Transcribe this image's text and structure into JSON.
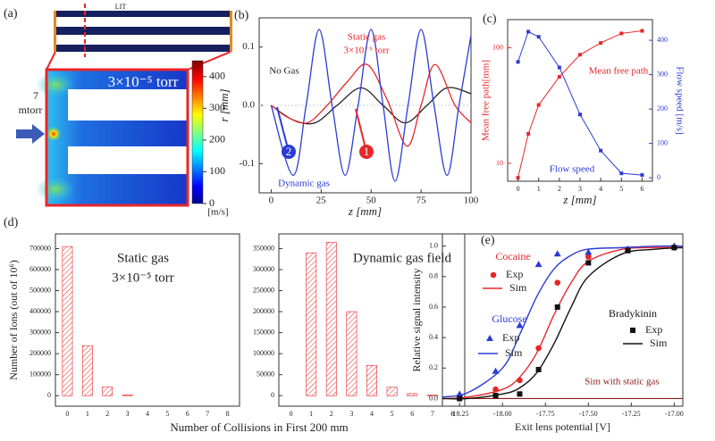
{
  "chart_data": [
    {
      "type": "heatmap",
      "panel": "(a)",
      "title": "LIT",
      "inlet_label": [
        "7",
        "mtorr"
      ],
      "annotation": "3×10⁻⁵ torr",
      "colorbar_label": "[m/s]",
      "clim": [
        0,
        450
      ],
      "colorbar_ticks": [
        0,
        100,
        200,
        300,
        400
      ]
    },
    {
      "type": "line",
      "panel": "(b)",
      "smooth": true,
      "xlabel": "z [mm]",
      "ylabel": "r [mm]",
      "xlim": [
        -6,
        100
      ],
      "ylim": [
        -0.15,
        0.15
      ],
      "xticks": [
        0,
        25,
        50,
        75,
        100
      ],
      "yticks": [
        -0.1,
        {
          "value": 0,
          "label": "0.0"
        },
        0.1
      ],
      "series": [
        {
          "name": "No Gas",
          "color": "#222222",
          "x": [
            0,
            11,
            22,
            33,
            45,
            56,
            67,
            78,
            88,
            100
          ],
          "values": [
            0,
            -0.025,
            -0.03,
            0,
            0.03,
            0,
            -0.03,
            0,
            0.03,
            0.02
          ]
        },
        {
          "name": "Static gas",
          "color": "#e8262a",
          "x": [
            0,
            8,
            18,
            28,
            38,
            48,
            58,
            68,
            75,
            82,
            92,
            100
          ],
          "values": [
            0,
            -0.02,
            -0.03,
            0,
            0.04,
            0.07,
            0.01,
            -0.07,
            0,
            0.07,
            0,
            -0.03
          ]
        },
        {
          "name": "Dynamic gas",
          "color": "#2b3bd6",
          "x": [
            0,
            11,
            17.5,
            24,
            30.5,
            37,
            43.5,
            50,
            56,
            62,
            68.5,
            75,
            81.5,
            88,
            94,
            100
          ],
          "values": [
            0,
            -0.12,
            0,
            0.13,
            0,
            -0.12,
            0,
            0.13,
            0,
            -0.13,
            0,
            0.13,
            0,
            -0.12,
            0,
            0.12
          ]
        }
      ],
      "annotations": [
        {
          "text": "3×10⁻⁵ torr",
          "color": "#e8262a"
        },
        {
          "text": "1",
          "color": "#e8262a",
          "badge": true
        },
        {
          "text": "2",
          "color": "#2b3bd6",
          "badge": true
        }
      ]
    },
    {
      "type": "line",
      "panel": "(c)",
      "xlabel": "z [mm]",
      "ylabel": "Mean free path[mm]",
      "y2label": "Flow speed [m/s]",
      "ylog": true,
      "marker": "square",
      "xlim": [
        -0.5,
        6.5
      ],
      "xticks": [
        0,
        1,
        2,
        3,
        4,
        5,
        6
      ],
      "ylim": [
        7,
        175
      ],
      "yticks": [
        10,
        100
      ],
      "y2lim": [
        -10,
        460
      ],
      "y2ticks": [
        0,
        100,
        200,
        300,
        400
      ],
      "x": [
        0,
        0.5,
        1,
        2,
        3,
        4,
        5,
        6
      ],
      "series": [
        {
          "name": "Mean free path",
          "color": "#e8262a",
          "values": [
            7.5,
            18,
            32,
            56,
            87,
            110,
            133,
            140
          ]
        },
        {
          "name": "Flow speed",
          "color": "#2b3bd6",
          "axis": "y2",
          "values": [
            337,
            425,
            410,
            321,
            184,
            79,
            13,
            8
          ]
        }
      ]
    },
    {
      "type": "bar",
      "panel": "(d)",
      "xlabel": "Number of Collisions in First 200 mm",
      "ylabel": "Number of Ions (out of 10⁶)",
      "color": "#e8262a",
      "hatch": true,
      "annotations": [
        {
          "text": "Static gas"
        },
        {
          "text": "3×10⁻⁵ torr"
        }
      ],
      "categories": [
        0,
        1,
        2,
        3,
        4,
        5,
        6,
        7,
        8
      ],
      "values": [
        710000,
        238000,
        42000,
        4000,
        0,
        0,
        0,
        0,
        0
      ],
      "xlim": [
        -0.6,
        8.6
      ],
      "ylim": [
        -50000,
        770000
      ],
      "yticks": [
        0,
        100000,
        200000,
        300000,
        400000,
        500000,
        600000,
        700000
      ]
    },
    {
      "type": "bar",
      "color": "#e8262a",
      "hatch": true,
      "annotations": [
        {
          "text": "Dynamic gas field"
        }
      ],
      "categories": [
        0,
        1,
        2,
        3,
        4,
        5,
        6,
        7,
        8
      ],
      "values": [
        0,
        340000,
        365000,
        200000,
        72000,
        20000,
        5000,
        1500,
        0
      ],
      "xlim": [
        -0.6,
        8.6
      ],
      "ylim": [
        -25000,
        385000
      ],
      "yticks": [
        0,
        50000,
        100000,
        150000,
        200000,
        250000,
        300000,
        350000
      ]
    },
    {
      "type": "scatter",
      "panel": "(e)",
      "xlabel": "Exit lens potential [V]",
      "ylabel": "Relative signal intensity",
      "xlim": [
        -18.35,
        -16.95
      ],
      "ylim": [
        -0.05,
        1.08
      ],
      "xticks": [
        -18.25,
        {
          "value": -18,
          "label": "-18.00"
        },
        -17.75,
        {
          "value": -17.5,
          "label": "-17.50"
        },
        -17.25,
        {
          "value": -17,
          "label": "-17.00"
        }
      ],
      "yticks": [
        {
          "value": 0,
          "label": "0.0"
        },
        0.2,
        0.4,
        0.6,
        0.8,
        {
          "value": 1,
          "label": "1.0"
        }
      ],
      "x": [
        -18.25,
        -18.04,
        -17.9,
        -17.79,
        -17.68,
        -17.5,
        -17.27,
        -17.0
      ],
      "sim_x": [
        -18.35,
        -18.2,
        -18.0,
        -17.9,
        -17.8,
        -17.7,
        -17.6,
        -17.5,
        -17.3,
        -17.1,
        -16.95
      ],
      "series": [
        {
          "name": "Cocaine",
          "color": "#e8262a",
          "marker": "circle",
          "exp_label": "Exp",
          "sim_label": "Sim",
          "values": [
            0.0,
            0.06,
            0.12,
            0.33,
            0.76,
            0.93,
            0.98,
            0.99
          ],
          "sim_values": [
            0.0,
            0.01,
            0.06,
            0.14,
            0.3,
            0.55,
            0.76,
            0.9,
            0.98,
            0.99,
            0.99
          ]
        },
        {
          "name": "Glucose",
          "color": "#2b3bd6",
          "marker": "triangle",
          "exp_label": "Exp",
          "sim_label": "Sim",
          "values": [
            0.03,
            0.18,
            0.48,
            0.88,
            0.95,
            0.96,
            0.98,
            1.0
          ],
          "sim_values": [
            0.01,
            0.04,
            0.2,
            0.42,
            0.67,
            0.85,
            0.94,
            0.98,
            0.99,
            1.0,
            1.0
          ]
        },
        {
          "name": "Bradykinin",
          "color": "#111111",
          "marker": "square",
          "exp_label": "Exp",
          "sim_label": "Sim",
          "values": [
            0.0,
            0.02,
            0.03,
            0.19,
            0.6,
            0.89,
            0.97,
            0.99
          ],
          "sim_values": [
            0.0,
            0.0,
            0.03,
            0.07,
            0.17,
            0.36,
            0.6,
            0.8,
            0.95,
            0.98,
            0.99
          ]
        }
      ],
      "baseline": {
        "name": "Sim with static gas",
        "color": "#8b1a1a",
        "x": [
          -18.35,
          -16.95
        ],
        "values": [
          0,
          0
        ]
      }
    }
  ]
}
